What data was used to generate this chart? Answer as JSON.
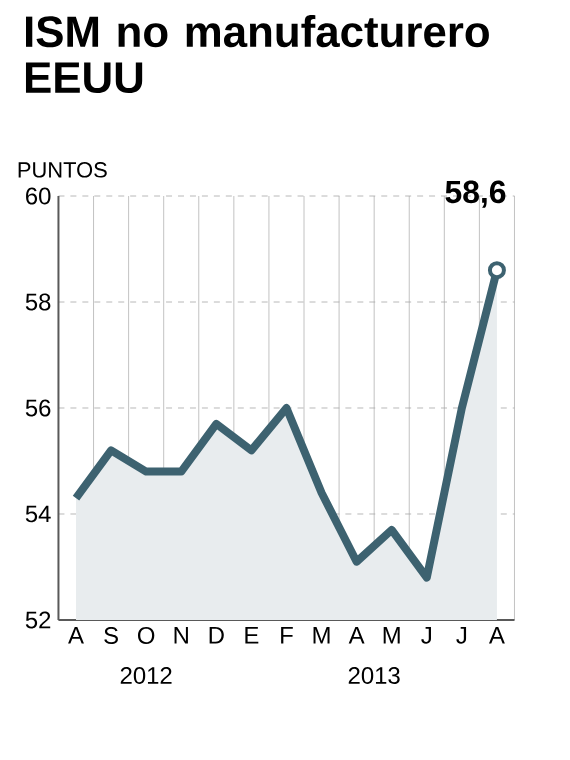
{
  "chart_data": {
    "type": "area",
    "title": "ISM no manufacturero EEUU",
    "ylabel": "PUNTOS",
    "categories": [
      "A",
      "S",
      "O",
      "N",
      "D",
      "E",
      "F",
      "M",
      "A",
      "M",
      "J",
      "J",
      "A"
    ],
    "series": [
      {
        "color": "#3d6270",
        "values": [
          54.3,
          55.2,
          54.8,
          54.8,
          55.7,
          55.2,
          56.0,
          54.4,
          53.1,
          53.7,
          52.8,
          56.0,
          58.6
        ],
        "value_labels": [
          null,
          null,
          null,
          null,
          null,
          null,
          null,
          null,
          null,
          null,
          null,
          null,
          "58,6"
        ]
      }
    ],
    "ylim": [
      52,
      60
    ],
    "yticks": [
      52,
      54,
      56,
      58,
      60
    ],
    "grid": true,
    "annotations": [
      "2012",
      "2013"
    ]
  }
}
